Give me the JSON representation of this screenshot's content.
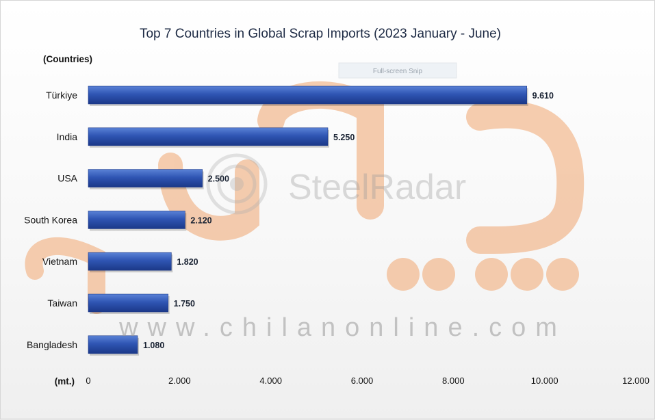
{
  "chart_data": {
    "type": "bar",
    "orientation": "horizontal",
    "title": "Top 7 Countries in Global Scrap Imports (2023 January - June)",
    "ylabel": "(Countries)",
    "xlabel": "(mt.)",
    "categories": [
      "Türkiye",
      "India",
      "USA",
      "South Korea",
      "Vietnam",
      "Taiwan",
      "Bangladesh"
    ],
    "values": [
      9.61,
      5.25,
      2.5,
      2.12,
      1.82,
      1.75,
      1.08
    ],
    "value_labels": [
      "9.610",
      "5.250",
      "2.500",
      "2.120",
      "1.820",
      "1.750",
      "1.080"
    ],
    "xlim": [
      0,
      12
    ],
    "xticks": [
      0,
      2,
      4,
      6,
      8,
      10,
      12
    ],
    "xtick_labels": [
      "0",
      "2.000",
      "4.000",
      "6.000",
      "8.000",
      "10.000",
      "12.000"
    ],
    "grid": false,
    "bar_color": "#2f55b3"
  },
  "overlay": {
    "snip_label": "Full-screen Snip"
  },
  "watermarks": {
    "url": "www.chilanonline.com",
    "brand": "SteelRadar",
    "logo_color": "#f3c3a0"
  }
}
